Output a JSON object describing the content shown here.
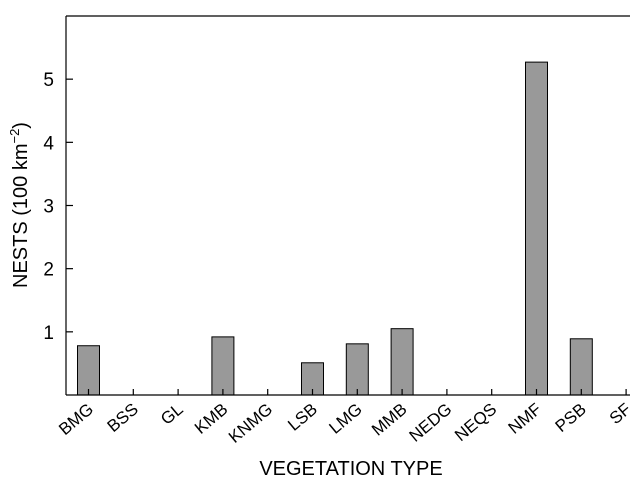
{
  "chart_data": {
    "type": "bar",
    "title": "",
    "xlabel": "VEGETATION TYPE",
    "ylabel": "NESTS (100 km",
    "ylabel_superscript": "−2",
    "ylabel_close": ")",
    "categories": [
      "BMG",
      "BSS",
      "GL",
      "KMB",
      "KNMG",
      "LSB",
      "LMG",
      "MMB",
      "NEDG",
      "NEQS",
      "NMF",
      "PSB",
      "SF"
    ],
    "values": [
      0.78,
      0,
      0,
      0.92,
      0,
      0.51,
      0.81,
      1.05,
      0,
      0,
      5.27,
      0.89,
      0
    ],
    "yticks": [
      1,
      2,
      3,
      4,
      5
    ],
    "ylim": [
      0,
      6
    ],
    "grid": false,
    "bar_color": "#999999",
    "bar_edge_color": "#000000"
  }
}
